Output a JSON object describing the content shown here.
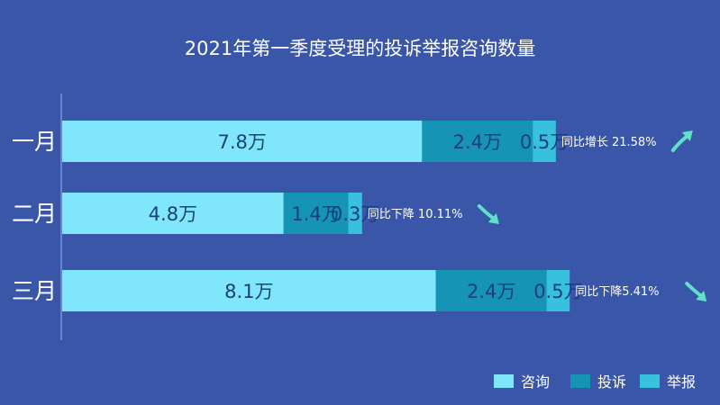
{
  "chart_data": {
    "type": "bar",
    "orientation": "horizontal",
    "stacked": true,
    "title": "2021年第一季度受理的投诉举报咨询数量",
    "categories": [
      "一月",
      "二月",
      "三月"
    ],
    "series": [
      {
        "name": "咨询",
        "values": [
          7.8,
          4.8,
          8.1
        ],
        "labels": [
          "7.8万",
          "4.8万",
          "8.1万"
        ],
        "color": "#7fe6fb"
      },
      {
        "name": "投诉",
        "values": [
          2.4,
          1.4,
          2.4
        ],
        "labels": [
          "2.4万",
          "1.4万",
          "2.4万"
        ],
        "color": "#1594b3"
      },
      {
        "name": "举报",
        "values": [
          0.5,
          0.3,
          0.5
        ],
        "labels": [
          "0.5万",
          "0.3万",
          "0.5万"
        ],
        "color": "#37c1dc"
      }
    ],
    "annotations": [
      {
        "text": "同比增长 21.58%",
        "trend": "up"
      },
      {
        "text": "同比下降 10.11%",
        "trend": "down"
      },
      {
        "text": "同比下降5.41%",
        "trend": "down"
      }
    ],
    "legend": "bottom-right",
    "grid": false
  },
  "colors": {
    "background": "#3a56a8",
    "axis": "#6f9ad6",
    "arrow": "#5fe1c8"
  }
}
